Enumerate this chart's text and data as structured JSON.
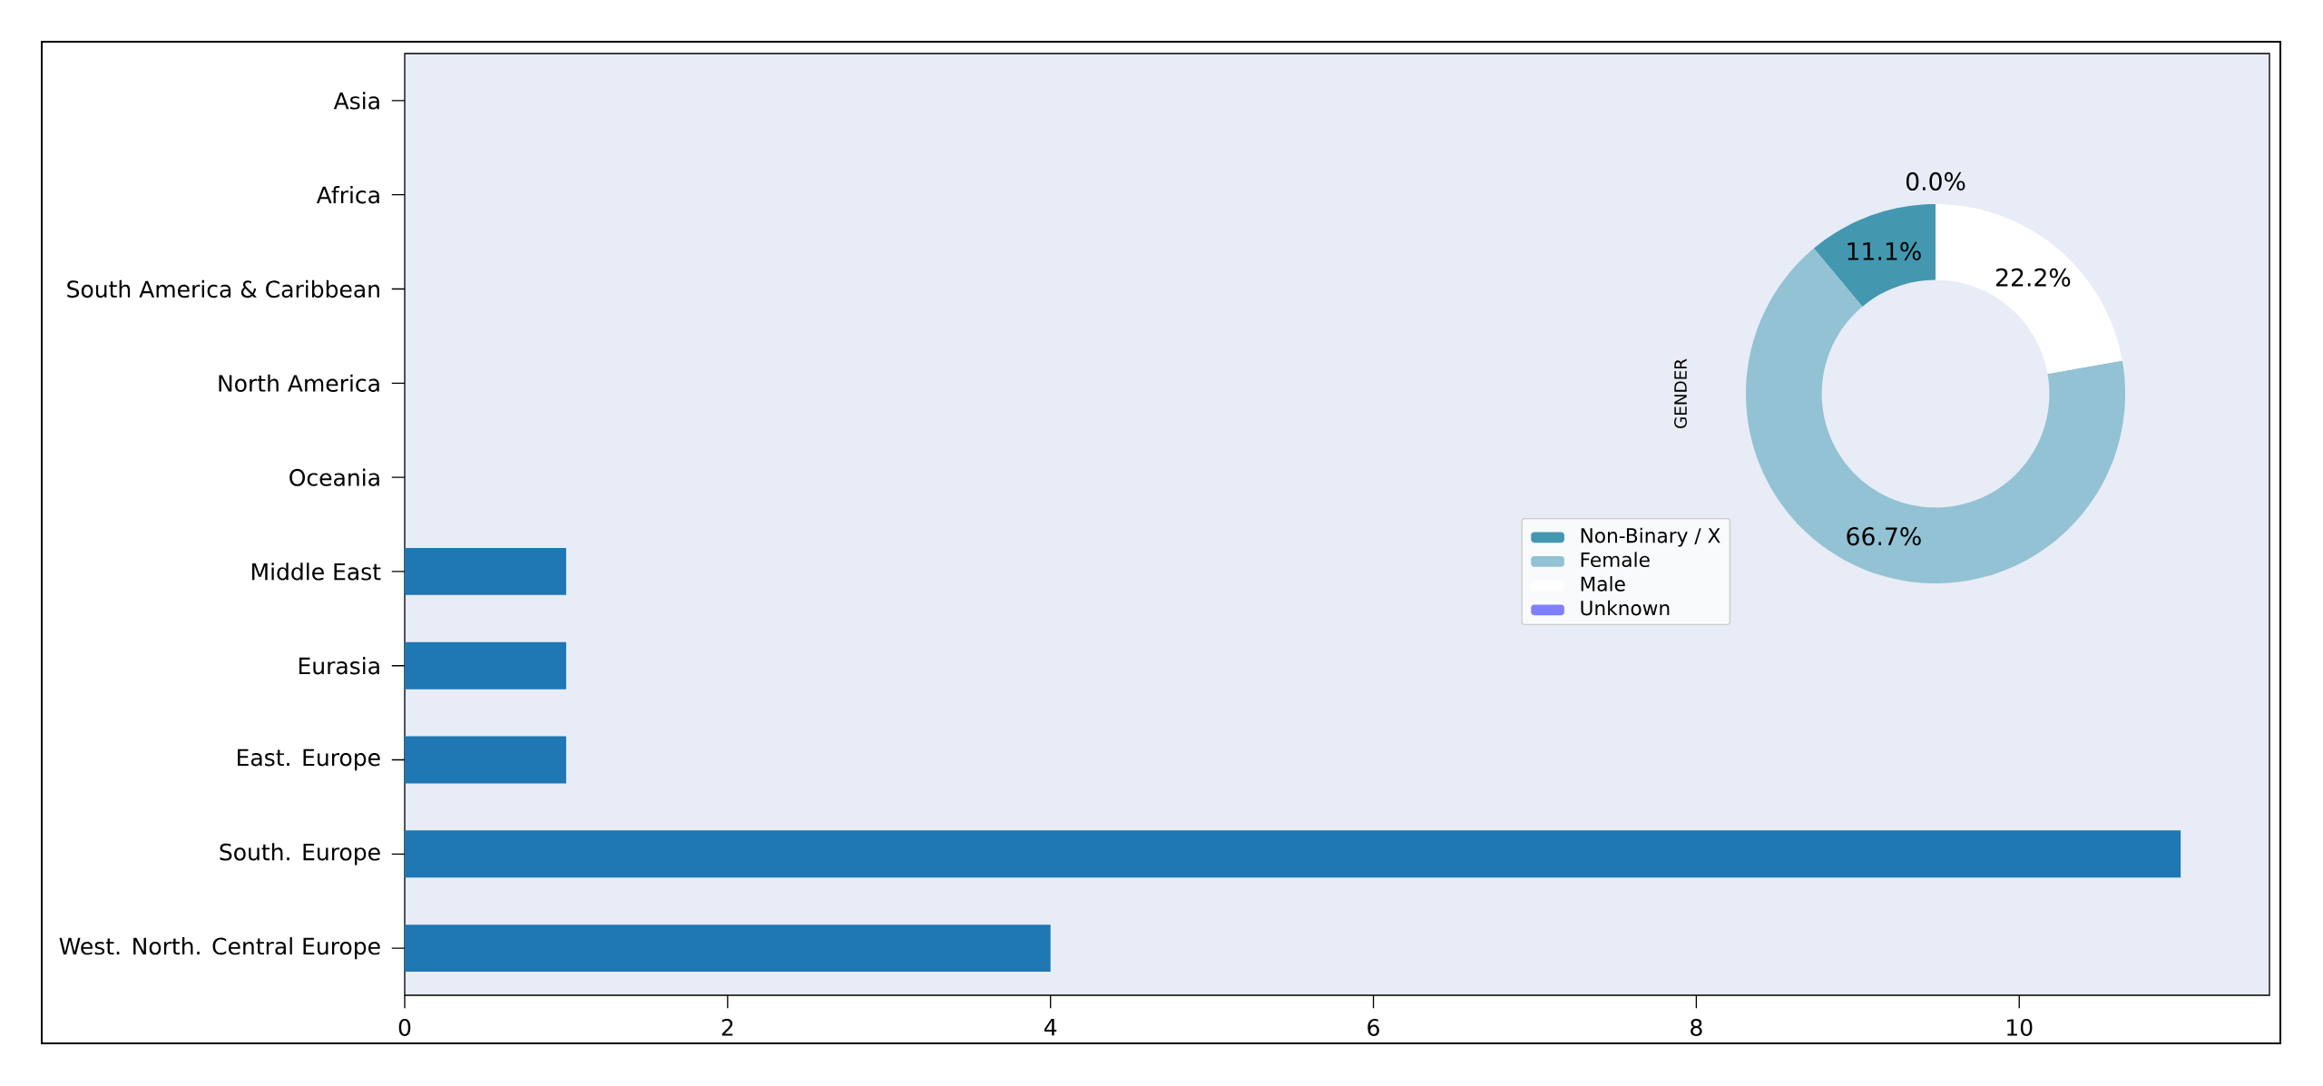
{
  "chart_data": [
    {
      "type": "bar",
      "orientation": "horizontal",
      "categories": [
        "Asia",
        "Africa",
        "South America & Caribbean",
        "North America",
        "Oceania",
        "Middle East",
        "Eurasia",
        "East. Europe",
        "South. Europe",
        "West. North. Central Europe"
      ],
      "values": [
        0,
        0,
        0,
        0,
        0,
        1,
        1,
        1,
        11,
        4
      ],
      "color": "#1f77b4",
      "xlim": [
        0,
        11.55
      ],
      "xticks": [
        0,
        2,
        4,
        6,
        8,
        10
      ]
    },
    {
      "type": "donut",
      "ylabel": "GENDER",
      "categories": [
        "Non-Binary / X",
        "Female",
        "Male",
        "Unknown"
      ],
      "values": [
        11.1,
        66.7,
        22.2,
        0.0
      ],
      "colors": [
        "#4398b0",
        "#92c2d4",
        "#ffffff",
        "#8080ff"
      ],
      "value_labels": [
        "11.1%",
        "66.7%",
        "22.2%",
        "0.0%"
      ],
      "legend": "bottom left"
    }
  ]
}
